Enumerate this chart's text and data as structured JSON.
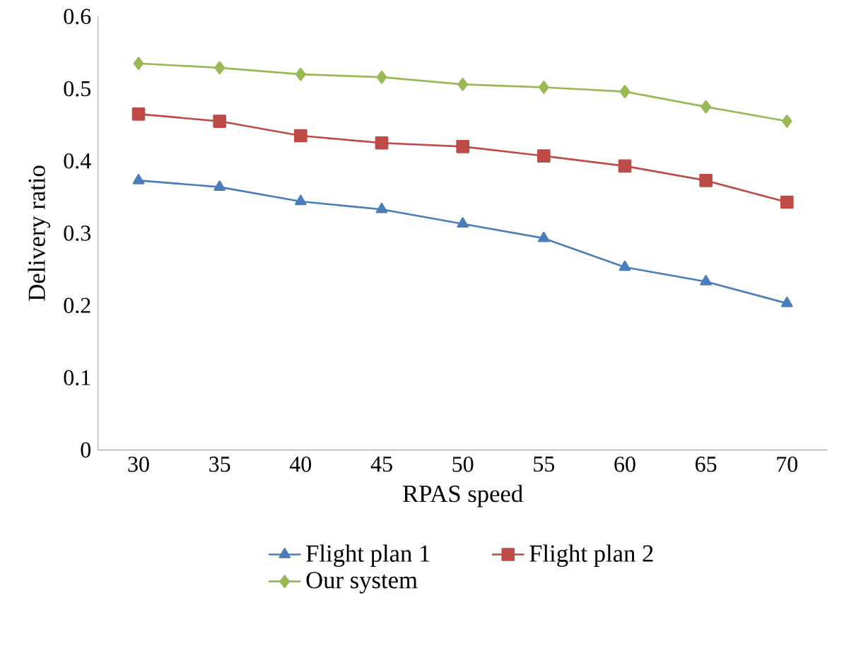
{
  "chart_data": {
    "type": "line",
    "xlabel": "RPAS speed",
    "ylabel": "Delivery ratio",
    "categories": [
      "30",
      "35",
      "40",
      "45",
      "50",
      "55",
      "60",
      "65",
      "70"
    ],
    "ylim": [
      0,
      0.6
    ],
    "yticks": [
      0,
      0.1,
      0.2,
      0.3,
      0.4,
      0.5,
      0.6
    ],
    "legend": "bottom",
    "series": [
      {
        "name": "Flight plan 1",
        "color": "#4a7ebb",
        "marker": "triangle",
        "values": [
          0.373,
          0.364,
          0.344,
          0.333,
          0.313,
          0.293,
          0.253,
          0.233,
          0.203
        ]
      },
      {
        "name": "Flight plan 2",
        "color": "#be4b48",
        "marker": "square",
        "values": [
          0.465,
          0.455,
          0.435,
          0.425,
          0.42,
          0.407,
          0.393,
          0.373,
          0.343
        ]
      },
      {
        "name": "Our system",
        "color": "#98b954",
        "marker": "diamond",
        "values": [
          0.535,
          0.529,
          0.52,
          0.516,
          0.506,
          0.502,
          0.496,
          0.475,
          0.455
        ]
      }
    ]
  }
}
